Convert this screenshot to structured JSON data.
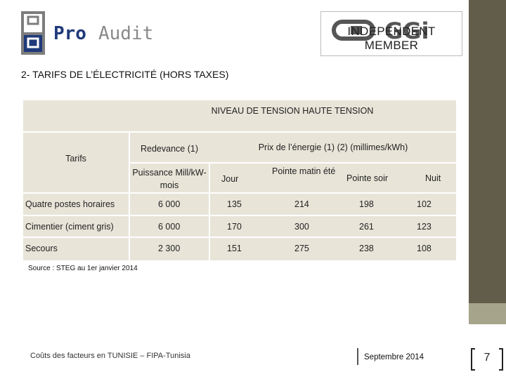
{
  "header": {
    "logo_left_text": "ProAudit",
    "logo_right_text": "GGi",
    "logo_right_caption": "INDEPENDENT MEMBER"
  },
  "title": "2- TARIFS DE L’ÉLECTRICITÉ (HORS TAXES)",
  "table": {
    "top_header": "NIVEAU DE TENSION HAUTE TENSION",
    "tarifs_label": "Tarifs",
    "redevance_label": "Redevance (1)",
    "prix_label": "Prix de l’énergie (1) (2) (millimes/kWh)",
    "puissance_label": "Puissance Mill/kW-mois",
    "columns": [
      "Jour",
      "Pointe matin été",
      "Pointe soir",
      "Nuit"
    ],
    "rows": [
      {
        "name": "Quatre postes horaires",
        "puissance": "6 000",
        "jour": "135",
        "pointe_matin": "214",
        "pointe_soir": "198",
        "nuit": "102"
      },
      {
        "name": "Cimentier (ciment gris)",
        "puissance": "6 000",
        "jour": "170",
        "pointe_matin": "300",
        "pointe_soir": "261",
        "nuit": "123"
      },
      {
        "name": "Secours",
        "puissance": "2 300",
        "jour": "151",
        "pointe_matin": "275",
        "pointe_soir": "238",
        "nuit": "108"
      }
    ]
  },
  "source": "Source : STEG au 1er janvier 2014",
  "footer": {
    "left": "Coûts des facteurs en TUNISIE – FIPA-Tunisia",
    "date": "Septembre 2014",
    "page": "7"
  }
}
